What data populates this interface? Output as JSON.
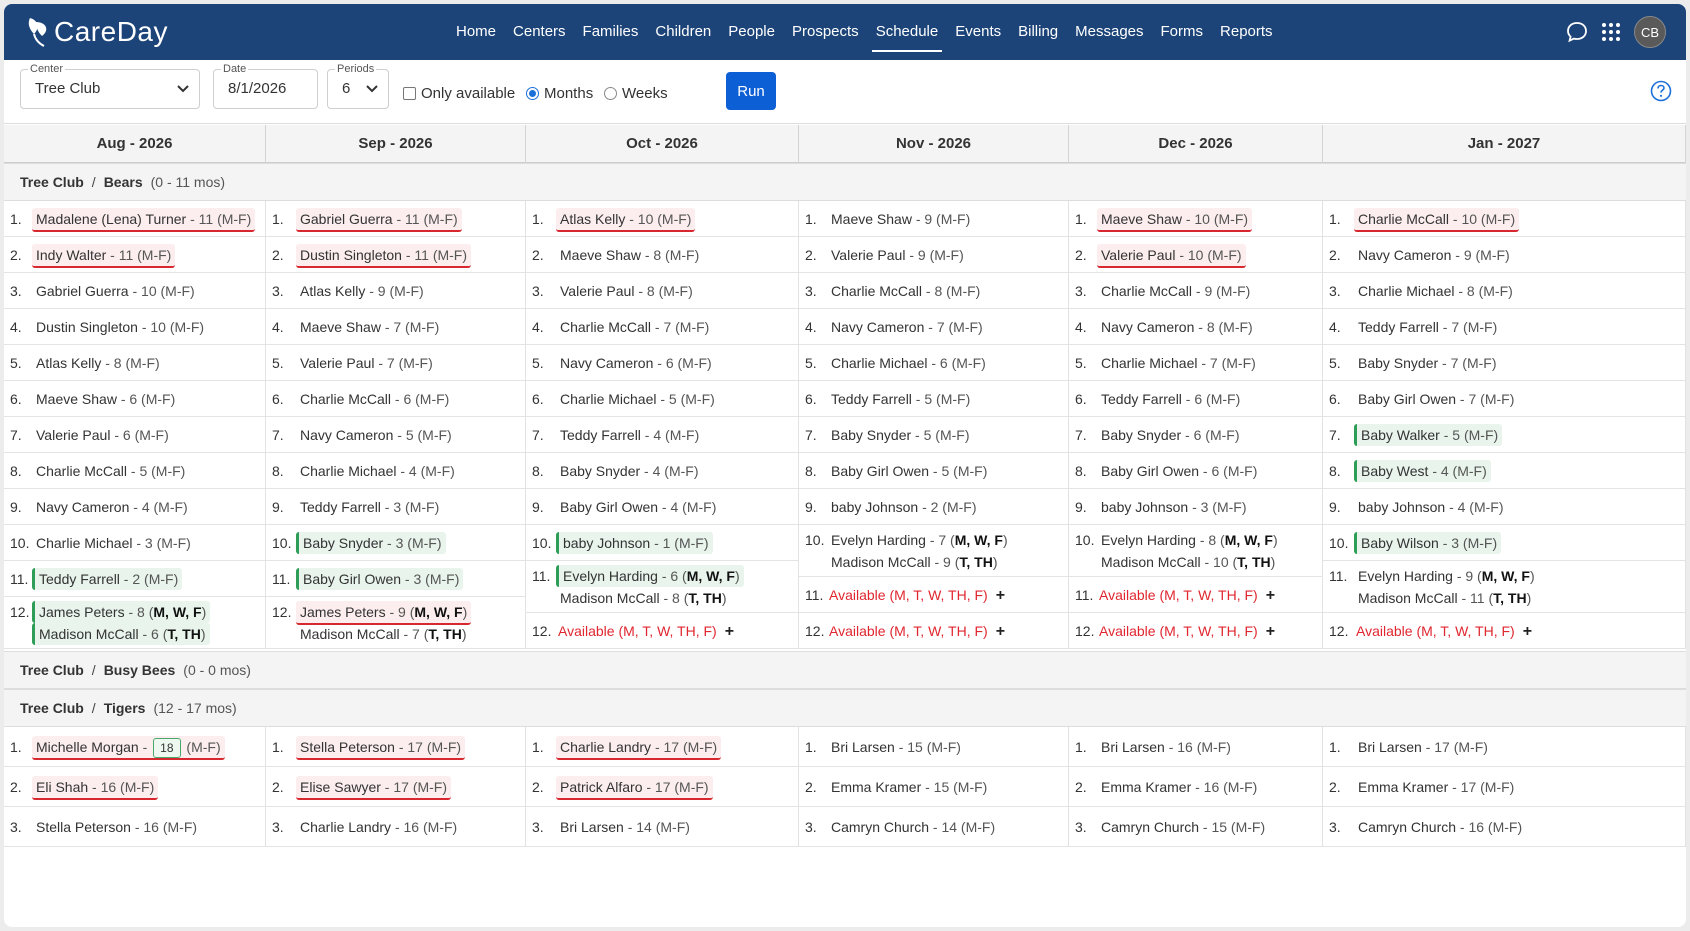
{
  "app": {
    "name": "CareDay",
    "user_initials": "CB"
  },
  "nav": [
    "Home",
    "Centers",
    "Families",
    "Children",
    "People",
    "Prospects",
    "Schedule",
    "Events",
    "Billing",
    "Messages",
    "Forms",
    "Reports"
  ],
  "nav_active": "Schedule",
  "toolbar": {
    "center_label": "Center",
    "center_value": "Tree Club",
    "date_label": "Date",
    "date_value": "8/1/2026",
    "periods_label": "Periods",
    "periods_value": "6",
    "only_available": "Only available",
    "months": "Months",
    "weeks": "Weeks",
    "run": "Run"
  },
  "months": [
    "Aug - 2026",
    "Sep - 2026",
    "Oct - 2026",
    "Nov - 2026",
    "Dec - 2026",
    "Jan - 2027"
  ],
  "colors": {
    "brand": "#1c4478",
    "accent": "#0d5fd6",
    "over": "#d8282f",
    "new": "#2e9d57"
  },
  "groups": [
    {
      "center": "Tree Club",
      "room": "Bears",
      "age": "(0 - 11 mos)",
      "columns": [
        [
          [
            {
              "t": "n",
              "n": "Madalene (Lena) Turner",
              "v": " - 11 (M-F)",
              "s": "red"
            }
          ],
          [
            {
              "t": "n",
              "n": "Indy Walter",
              "v": " - 11 (M-F)",
              "s": "red"
            }
          ],
          [
            {
              "t": "n",
              "n": "Gabriel Guerra",
              "v": " - 10 (M-F)"
            }
          ],
          [
            {
              "t": "n",
              "n": "Dustin Singleton",
              "v": " - 10 (M-F)"
            }
          ],
          [
            {
              "t": "n",
              "n": "Atlas Kelly",
              "v": " - 8 (M-F)"
            }
          ],
          [
            {
              "t": "n",
              "n": "Maeve Shaw",
              "v": " - 6 (M-F)"
            }
          ],
          [
            {
              "t": "n",
              "n": "Valerie Paul",
              "v": " - 6 (M-F)"
            }
          ],
          [
            {
              "t": "n",
              "n": "Charlie McCall",
              "v": " - 5 (M-F)"
            }
          ],
          [
            {
              "t": "n",
              "n": "Navy Cameron",
              "v": " - 4 (M-F)"
            }
          ],
          [
            {
              "t": "n",
              "n": "Charlie Michael",
              "v": " - 3 (M-F)"
            }
          ],
          [
            {
              "t": "n",
              "n": "Teddy Farrell",
              "v": " - 2 (M-F)",
              "s": "green"
            }
          ],
          [
            {
              "t": "n",
              "n": "James Peters",
              "v": " - 8 (",
              "d": "M, W, F",
              "e": ")",
              "s": "green"
            },
            {
              "t": "n",
              "n": "Madison McCall",
              "v": " - 6 (",
              "d": "T, TH",
              "e": ")",
              "s": "green"
            }
          ]
        ],
        [
          [
            {
              "t": "n",
              "n": "Gabriel Guerra",
              "v": " - 11 (M-F)",
              "s": "red"
            }
          ],
          [
            {
              "t": "n",
              "n": "Dustin Singleton",
              "v": " - 11 (M-F)",
              "s": "red"
            }
          ],
          [
            {
              "t": "n",
              "n": "Atlas Kelly",
              "v": " - 9 (M-F)"
            }
          ],
          [
            {
              "t": "n",
              "n": "Maeve Shaw",
              "v": " - 7 (M-F)"
            }
          ],
          [
            {
              "t": "n",
              "n": "Valerie Paul",
              "v": " - 7 (M-F)"
            }
          ],
          [
            {
              "t": "n",
              "n": "Charlie McCall",
              "v": " - 6 (M-F)"
            }
          ],
          [
            {
              "t": "n",
              "n": "Navy Cameron",
              "v": " - 5 (M-F)"
            }
          ],
          [
            {
              "t": "n",
              "n": "Charlie Michael",
              "v": " - 4 (M-F)"
            }
          ],
          [
            {
              "t": "n",
              "n": "Teddy Farrell",
              "v": " - 3 (M-F)"
            }
          ],
          [
            {
              "t": "n",
              "n": "Baby Snyder",
              "v": " - 3 (M-F)",
              "s": "green"
            }
          ],
          [
            {
              "t": "n",
              "n": "Baby Girl Owen",
              "v": " - 3 (M-F)",
              "s": "green"
            }
          ],
          [
            {
              "t": "n",
              "n": "James Peters",
              "v": " - 9 (",
              "d": "M, W, F",
              "e": ")",
              "s": "red"
            },
            {
              "t": "n",
              "n": "Madison McCall",
              "v": " - 7 (",
              "d": "T, TH",
              "e": ")"
            }
          ]
        ],
        [
          [
            {
              "t": "n",
              "n": "Atlas Kelly",
              "v": " - 10 (M-F)",
              "s": "red"
            }
          ],
          [
            {
              "t": "n",
              "n": "Maeve Shaw",
              "v": " - 8 (M-F)"
            }
          ],
          [
            {
              "t": "n",
              "n": "Valerie Paul",
              "v": " - 8 (M-F)"
            }
          ],
          [
            {
              "t": "n",
              "n": "Charlie McCall",
              "v": " - 7 (M-F)"
            }
          ],
          [
            {
              "t": "n",
              "n": "Navy Cameron",
              "v": " - 6 (M-F)"
            }
          ],
          [
            {
              "t": "n",
              "n": "Charlie Michael",
              "v": " - 5 (M-F)"
            }
          ],
          [
            {
              "t": "n",
              "n": "Teddy Farrell",
              "v": " - 4 (M-F)"
            }
          ],
          [
            {
              "t": "n",
              "n": "Baby Snyder",
              "v": " - 4 (M-F)"
            }
          ],
          [
            {
              "t": "n",
              "n": "Baby Girl Owen",
              "v": " - 4 (M-F)"
            }
          ],
          [
            {
              "t": "n",
              "n": "baby Johnson",
              "v": " - 1 (M-F)",
              "s": "green"
            }
          ],
          [
            {
              "t": "n",
              "n": "Evelyn Harding",
              "v": " - 6 (",
              "d": "M, W, F",
              "e": ")",
              "s": "green"
            },
            {
              "t": "n",
              "n": "Madison McCall",
              "v": " - 8 (",
              "d": "T, TH",
              "e": ")"
            }
          ],
          [
            {
              "t": "a",
              "n": "Available (M, T, W, TH, F)"
            }
          ]
        ],
        [
          [
            {
              "t": "n",
              "n": "Maeve Shaw",
              "v": " - 9 (M-F)"
            }
          ],
          [
            {
              "t": "n",
              "n": "Valerie Paul",
              "v": " - 9 (M-F)"
            }
          ],
          [
            {
              "t": "n",
              "n": "Charlie McCall",
              "v": " - 8 (M-F)"
            }
          ],
          [
            {
              "t": "n",
              "n": "Navy Cameron",
              "v": " - 7 (M-F)"
            }
          ],
          [
            {
              "t": "n",
              "n": "Charlie Michael",
              "v": " - 6 (M-F)"
            }
          ],
          [
            {
              "t": "n",
              "n": "Teddy Farrell",
              "v": " - 5 (M-F)"
            }
          ],
          [
            {
              "t": "n",
              "n": "Baby Snyder",
              "v": " - 5 (M-F)"
            }
          ],
          [
            {
              "t": "n",
              "n": "Baby Girl Owen",
              "v": " - 5 (M-F)"
            }
          ],
          [
            {
              "t": "n",
              "n": "baby Johnson",
              "v": " - 2 (M-F)"
            }
          ],
          [
            {
              "t": "n",
              "n": "Evelyn Harding",
              "v": " - 7 (",
              "d": "M, W, F",
              "e": ")"
            },
            {
              "t": "n",
              "n": "Madison McCall",
              "v": " - 9 (",
              "d": "T, TH",
              "e": ")"
            }
          ],
          [
            {
              "t": "a",
              "n": "Available (M, T, W, TH, F)"
            }
          ],
          [
            {
              "t": "a",
              "n": "Available (M, T, W, TH, F)"
            }
          ]
        ],
        [
          [
            {
              "t": "n",
              "n": "Maeve Shaw",
              "v": " - 10 (M-F)",
              "s": "red"
            }
          ],
          [
            {
              "t": "n",
              "n": "Valerie Paul",
              "v": " - 10 (M-F)",
              "s": "red"
            }
          ],
          [
            {
              "t": "n",
              "n": "Charlie McCall",
              "v": " - 9 (M-F)"
            }
          ],
          [
            {
              "t": "n",
              "n": "Navy Cameron",
              "v": " - 8 (M-F)"
            }
          ],
          [
            {
              "t": "n",
              "n": "Charlie Michael",
              "v": " - 7 (M-F)"
            }
          ],
          [
            {
              "t": "n",
              "n": "Teddy Farrell",
              "v": " - 6 (M-F)"
            }
          ],
          [
            {
              "t": "n",
              "n": "Baby Snyder",
              "v": " - 6 (M-F)"
            }
          ],
          [
            {
              "t": "n",
              "n": "Baby Girl Owen",
              "v": " - 6 (M-F)"
            }
          ],
          [
            {
              "t": "n",
              "n": "baby Johnson",
              "v": " - 3 (M-F)"
            }
          ],
          [
            {
              "t": "n",
              "n": "Evelyn Harding",
              "v": " - 8 (",
              "d": "M, W, F",
              "e": ")"
            },
            {
              "t": "n",
              "n": "Madison McCall",
              "v": " - 10 (",
              "d": "T, TH",
              "e": ")"
            }
          ],
          [
            {
              "t": "a",
              "n": "Available (M, T, W, TH, F)"
            }
          ],
          [
            {
              "t": "a",
              "n": "Available (M, T, W, TH, F)"
            }
          ]
        ],
        [
          [
            {
              "t": "n",
              "n": "Charlie McCall",
              "v": " - 10 (M-F)",
              "s": "red"
            }
          ],
          [
            {
              "t": "n",
              "n": "Navy Cameron",
              "v": " - 9 (M-F)"
            }
          ],
          [
            {
              "t": "n",
              "n": "Charlie Michael",
              "v": " - 8 (M-F)"
            }
          ],
          [
            {
              "t": "n",
              "n": "Teddy Farrell",
              "v": " - 7 (M-F)"
            }
          ],
          [
            {
              "t": "n",
              "n": "Baby Snyder",
              "v": " - 7 (M-F)"
            }
          ],
          [
            {
              "t": "n",
              "n": "Baby Girl Owen",
              "v": " - 7 (M-F)"
            }
          ],
          [
            {
              "t": "n",
              "n": "Baby Walker",
              "v": " - 5 (M-F)",
              "s": "green"
            }
          ],
          [
            {
              "t": "n",
              "n": "Baby West",
              "v": " - 4 (M-F)",
              "s": "green"
            }
          ],
          [
            {
              "t": "n",
              "n": "baby Johnson",
              "v": " - 4 (M-F)"
            }
          ],
          [
            {
              "t": "n",
              "n": "Baby Wilson",
              "v": " - 3 (M-F)",
              "s": "green"
            }
          ],
          [
            {
              "t": "n",
              "n": "Evelyn Harding",
              "v": " - 9 (",
              "d": "M, W, F",
              "e": ")"
            },
            {
              "t": "n",
              "n": "Madison McCall",
              "v": " - 11 (",
              "d": "T, TH",
              "e": ")"
            }
          ],
          [
            {
              "t": "a",
              "n": "Available (M, T, W, TH, F)"
            }
          ]
        ]
      ]
    },
    {
      "center": "Tree Club",
      "room": "Busy Bees",
      "age": "(0 - 0 mos)",
      "columns": []
    },
    {
      "center": "Tree Club",
      "room": "Tigers",
      "age": "(12 - 17 mos)",
      "columns": [
        [
          [
            {
              "t": "n",
              "n": "Michelle Morgan",
              "v": " - ",
              "b": "18",
              "e": " (M-F)",
              "s": "red"
            }
          ],
          [
            {
              "t": "n",
              "n": "Eli Shah",
              "v": " - 16 (M-F)",
              "s": "red"
            }
          ],
          [
            {
              "t": "n",
              "n": "Stella Peterson",
              "v": " - 16 (M-F)"
            }
          ]
        ],
        [
          [
            {
              "t": "n",
              "n": "Stella Peterson",
              "v": " - 17 (M-F)",
              "s": "red"
            }
          ],
          [
            {
              "t": "n",
              "n": "Elise Sawyer",
              "v": " - 17 (M-F)",
              "s": "red"
            }
          ],
          [
            {
              "t": "n",
              "n": "Charlie Landry",
              "v": " - 16 (M-F)"
            }
          ]
        ],
        [
          [
            {
              "t": "n",
              "n": "Charlie Landry",
              "v": " - 17 (M-F)",
              "s": "red"
            }
          ],
          [
            {
              "t": "n",
              "n": "Patrick Alfaro",
              "v": " - 17 (M-F)",
              "s": "red"
            }
          ],
          [
            {
              "t": "n",
              "n": "Bri Larsen",
              "v": " - 14 (M-F)"
            }
          ]
        ],
        [
          [
            {
              "t": "n",
              "n": "Bri Larsen",
              "v": " - 15 (M-F)"
            }
          ],
          [
            {
              "t": "n",
              "n": "Emma Kramer",
              "v": " - 15 (M-F)"
            }
          ],
          [
            {
              "t": "n",
              "n": "Camryn Church",
              "v": " - 14 (M-F)"
            }
          ]
        ],
        [
          [
            {
              "t": "n",
              "n": "Bri Larsen",
              "v": " - 16 (M-F)"
            }
          ],
          [
            {
              "t": "n",
              "n": "Emma Kramer",
              "v": " - 16 (M-F)"
            }
          ],
          [
            {
              "t": "n",
              "n": "Camryn Church",
              "v": " - 15 (M-F)"
            }
          ]
        ],
        [
          [
            {
              "t": "n",
              "n": "Bri Larsen",
              "v": " - 17 (M-F)"
            }
          ],
          [
            {
              "t": "n",
              "n": "Emma Kramer",
              "v": " - 17 (M-F)"
            }
          ],
          [
            {
              "t": "n",
              "n": "Camryn Church",
              "v": " - 16 (M-F)"
            }
          ]
        ]
      ]
    }
  ]
}
